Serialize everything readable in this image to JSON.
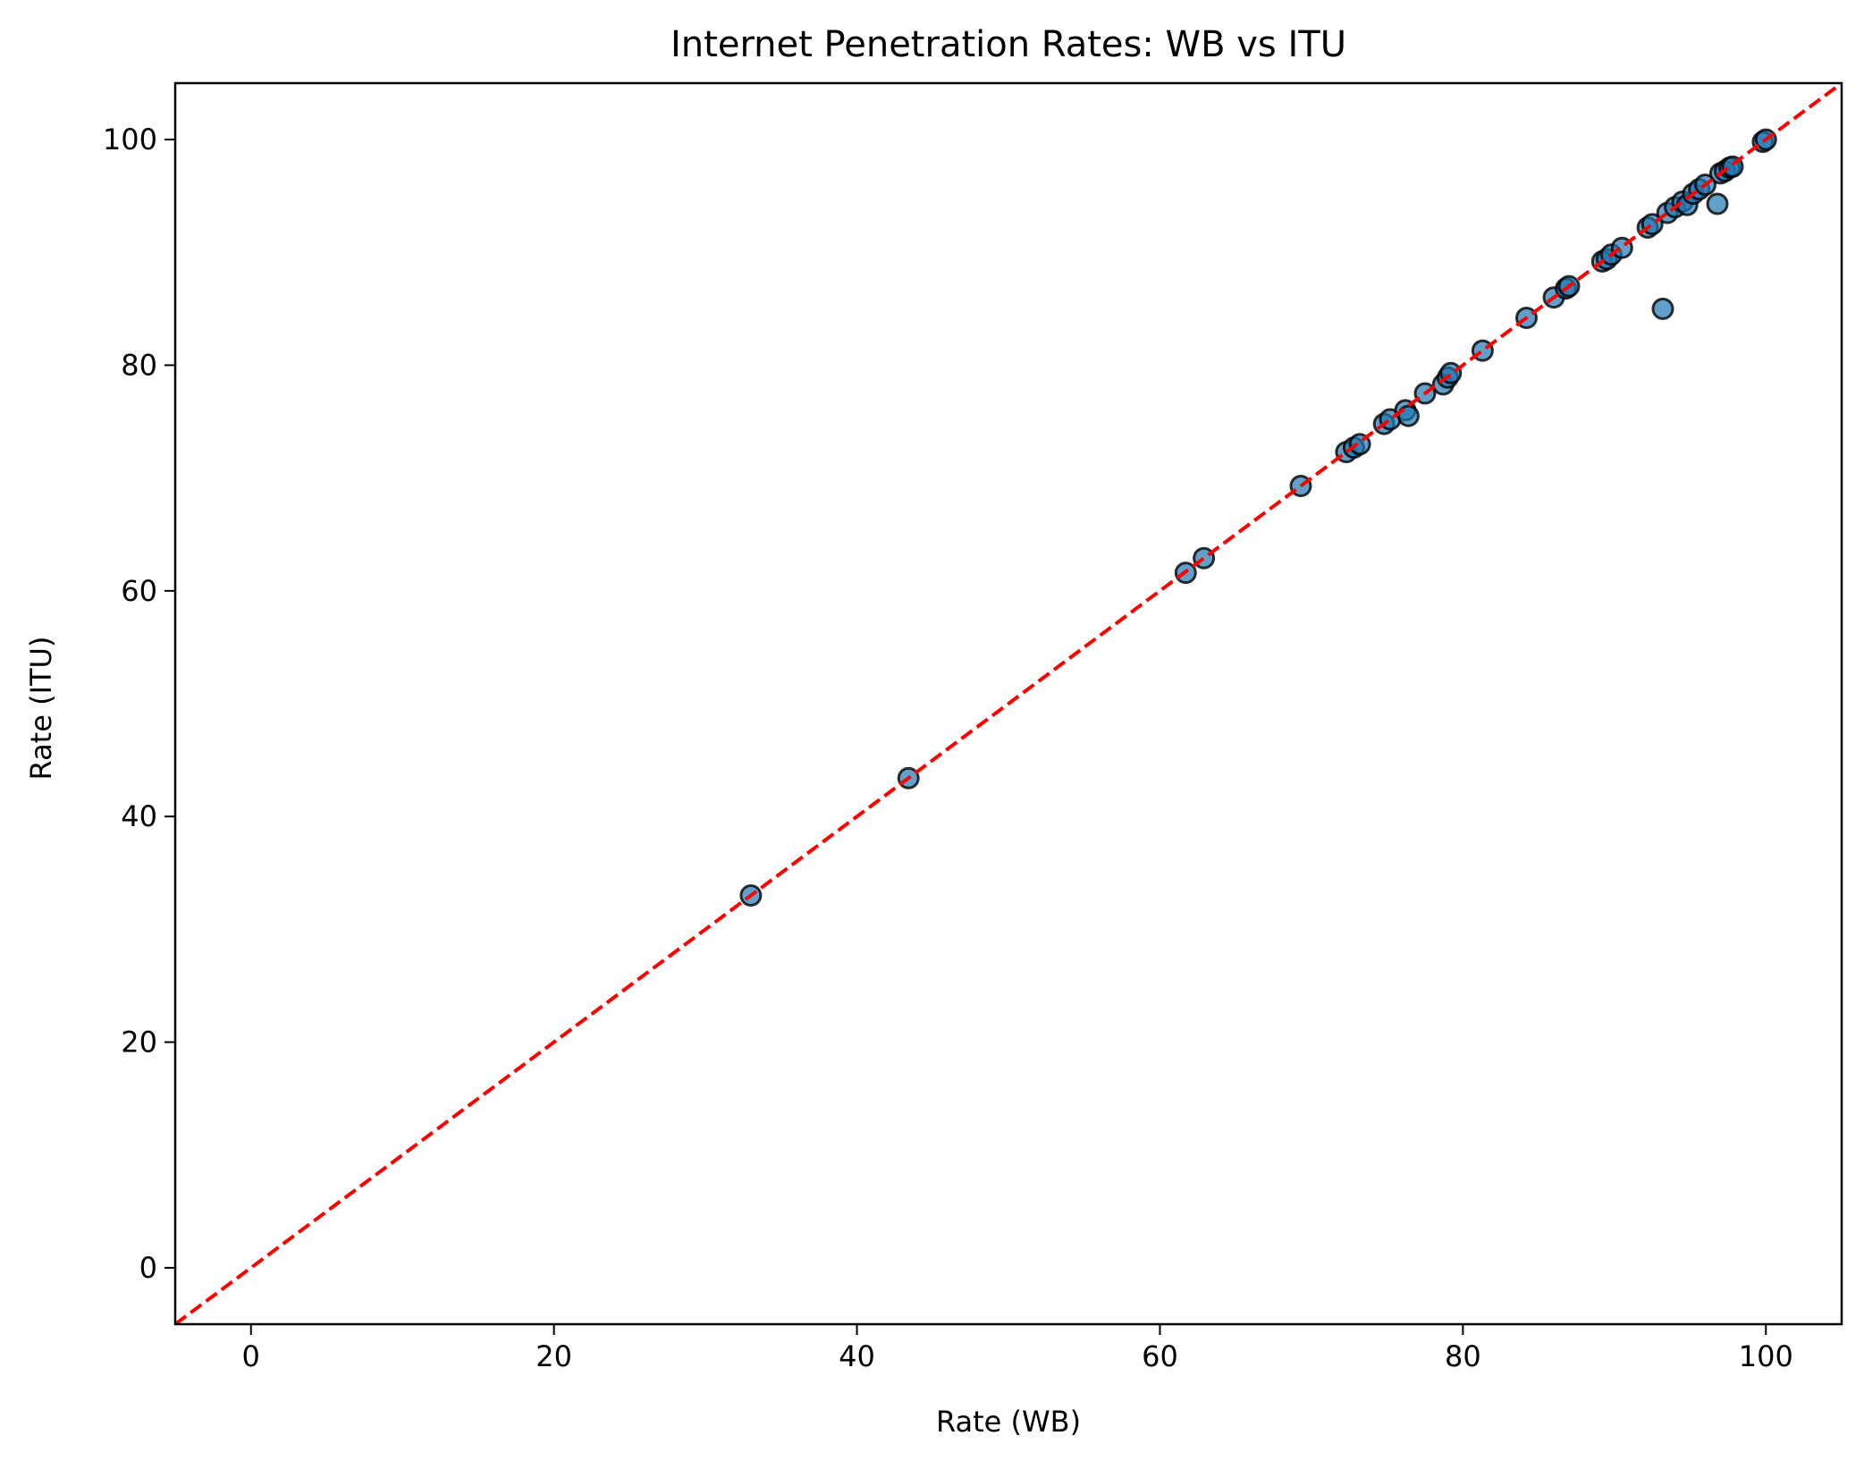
{
  "chart_data": {
    "type": "scatter",
    "title": "Internet Penetration Rates: WB vs ITU",
    "xlabel": "Rate (WB)",
    "ylabel": "Rate (ITU)",
    "xlim": [
      -5,
      105
    ],
    "ylim": [
      -5,
      105
    ],
    "xticks": [
      0,
      20,
      40,
      60,
      80,
      100
    ],
    "yticks": [
      0,
      20,
      40,
      60,
      80,
      100
    ],
    "grid": false,
    "legend": "none",
    "marker_color": "#1f77b4",
    "marker_edge_color": "#000000",
    "reference_line": {
      "label": "",
      "from": [
        -5,
        -5
      ],
      "to": [
        105,
        105
      ],
      "color": "#ff0000",
      "style": "dashed"
    },
    "series": [
      {
        "points": [
          [
            33.0,
            33.0
          ],
          [
            43.4,
            43.4
          ],
          [
            61.7,
            61.6
          ],
          [
            62.9,
            62.9
          ],
          [
            69.3,
            69.3
          ],
          [
            72.3,
            72.3
          ],
          [
            72.8,
            72.7
          ],
          [
            73.2,
            73.0
          ],
          [
            74.8,
            74.8
          ],
          [
            75.2,
            75.2
          ],
          [
            76.2,
            76.0
          ],
          [
            76.4,
            75.5
          ],
          [
            77.5,
            77.5
          ],
          [
            78.7,
            78.3
          ],
          [
            79.0,
            78.9
          ],
          [
            79.2,
            79.3
          ],
          [
            81.3,
            81.3
          ],
          [
            84.2,
            84.2
          ],
          [
            86.0,
            86.0
          ],
          [
            86.8,
            86.8
          ],
          [
            87.0,
            87.0
          ],
          [
            89.2,
            89.2
          ],
          [
            89.5,
            89.4
          ],
          [
            89.8,
            89.8
          ],
          [
            90.5,
            90.4
          ],
          [
            92.2,
            92.2
          ],
          [
            92.5,
            92.5
          ],
          [
            93.2,
            85.0
          ],
          [
            93.5,
            93.5
          ],
          [
            94.0,
            94.0
          ],
          [
            94.5,
            94.5
          ],
          [
            94.8,
            94.2
          ],
          [
            95.2,
            95.2
          ],
          [
            95.6,
            95.6
          ],
          [
            96.0,
            96.0
          ],
          [
            96.8,
            94.3
          ],
          [
            97.0,
            97.0
          ],
          [
            97.3,
            97.2
          ],
          [
            97.6,
            97.5
          ],
          [
            97.8,
            97.6
          ],
          [
            99.8,
            99.8
          ],
          [
            100.0,
            100.0
          ]
        ]
      }
    ]
  }
}
